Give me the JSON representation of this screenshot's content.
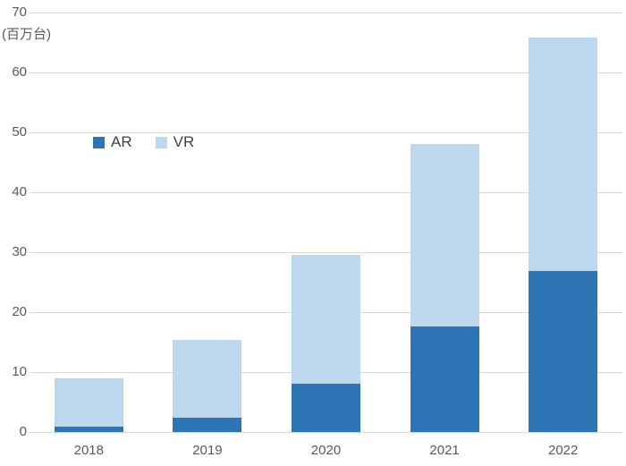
{
  "chart_data": {
    "type": "bar",
    "stacked": true,
    "title": "",
    "unit_label": "(百万台)",
    "xlabel": "",
    "ylabel": "(百万台)",
    "categories": [
      "2018",
      "2019",
      "2020",
      "2021",
      "2022"
    ],
    "series": [
      {
        "name": "AR",
        "color": "#2E75B6",
        "values": [
          0.9,
          2.4,
          8.1,
          17.6,
          26.9
        ]
      },
      {
        "name": "VR",
        "color": "#BDD7EE",
        "values": [
          8.0,
          13.0,
          21.5,
          30.5,
          38.9
        ]
      }
    ],
    "totals": [
      8.9,
      15.4,
      29.6,
      48.1,
      65.8
    ],
    "ylim": [
      0,
      70
    ],
    "yticks": [
      0,
      10,
      20,
      30,
      40,
      50,
      60,
      70
    ],
    "grid": "horizontal",
    "legend_position": "inside-upper-left",
    "colors": {
      "gridline": "#D9D9D9",
      "axis_labels": "#595959",
      "legend_text": "#404040",
      "background": "#FFFFFF"
    }
  }
}
